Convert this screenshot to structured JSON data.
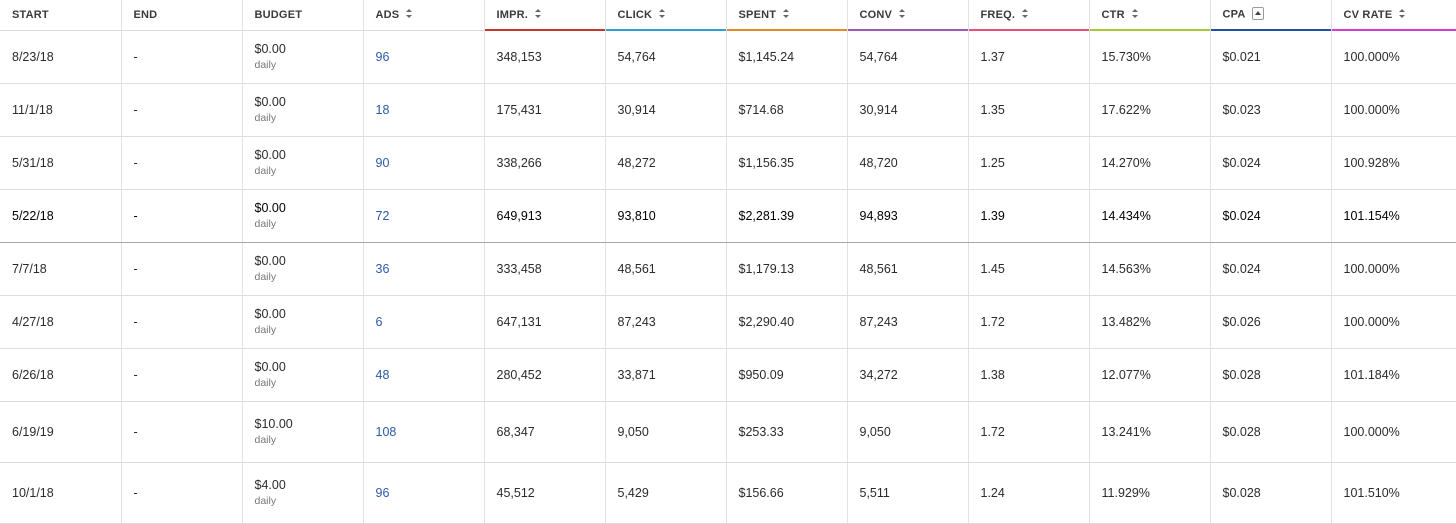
{
  "columns": [
    {
      "label": "START",
      "sort": "none",
      "accent": ""
    },
    {
      "label": "END",
      "sort": "none",
      "accent": ""
    },
    {
      "label": "BUDGET",
      "sort": "none",
      "accent": ""
    },
    {
      "label": "ADS",
      "sort": "both",
      "accent": ""
    },
    {
      "label": "IMPR.",
      "sort": "both",
      "accent": "#c0392b"
    },
    {
      "label": "CLICK",
      "sort": "both",
      "accent": "#2d9fd1"
    },
    {
      "label": "SPENT",
      "sort": "both",
      "accent": "#e08a2c"
    },
    {
      "label": "CONV",
      "sort": "both",
      "accent": "#9b59b6"
    },
    {
      "label": "FREQ.",
      "sort": "both",
      "accent": "#e84f7a"
    },
    {
      "label": "CTR",
      "sort": "both",
      "accent": "#a6c936"
    },
    {
      "label": "CPA",
      "sort": "asc",
      "accent": "#1f4fa8"
    },
    {
      "label": "CV RATE",
      "sort": "both",
      "accent": "#d63bcf"
    }
  ],
  "rows": [
    {
      "start": "8/23/18",
      "end": "-",
      "budget": "$0.00",
      "budget_unit": "daily",
      "ads": "96",
      "impr": "348,153",
      "click": "54,764",
      "spent": "$1,145.24",
      "conv": "54,764",
      "freq": "1.37",
      "ctr": "15.730%",
      "cpa": "$0.021",
      "cv_rate": "100.000%"
    },
    {
      "start": "11/1/18",
      "end": "-",
      "budget": "$0.00",
      "budget_unit": "daily",
      "ads": "18",
      "impr": "175,431",
      "click": "30,914",
      "spent": "$714.68",
      "conv": "30,914",
      "freq": "1.35",
      "ctr": "17.622%",
      "cpa": "$0.023",
      "cv_rate": "100.000%"
    },
    {
      "start": "5/31/18",
      "end": "-",
      "budget": "$0.00",
      "budget_unit": "daily",
      "ads": "90",
      "impr": "338,266",
      "click": "48,272",
      "spent": "$1,156.35",
      "conv": "48,720",
      "freq": "1.25",
      "ctr": "14.270%",
      "cpa": "$0.024",
      "cv_rate": "100.928%"
    },
    {
      "start": "5/22/18",
      "end": "-",
      "budget": "$0.00",
      "budget_unit": "daily",
      "ads": "72",
      "impr": "649,913",
      "click": "93,810",
      "spent": "$2,281.39",
      "conv": "94,893",
      "freq": "1.39",
      "ctr": "14.434%",
      "cpa": "$0.024",
      "cv_rate": "101.154%"
    },
    {
      "start": "7/7/18",
      "end": "-",
      "budget": "$0.00",
      "budget_unit": "daily",
      "ads": "36",
      "impr": "333,458",
      "click": "48,561",
      "spent": "$1,179.13",
      "conv": "48,561",
      "freq": "1.45",
      "ctr": "14.563%",
      "cpa": "$0.024",
      "cv_rate": "100.000%"
    },
    {
      "start": "4/27/18",
      "end": "-",
      "budget": "$0.00",
      "budget_unit": "daily",
      "ads": "6",
      "impr": "647,131",
      "click": "87,243",
      "spent": "$2,290.40",
      "conv": "87,243",
      "freq": "1.72",
      "ctr": "13.482%",
      "cpa": "$0.026",
      "cv_rate": "100.000%"
    },
    {
      "start": "6/26/18",
      "end": "-",
      "budget": "$0.00",
      "budget_unit": "daily",
      "ads": "48",
      "impr": "280,452",
      "click": "33,871",
      "spent": "$950.09",
      "conv": "34,272",
      "freq": "1.38",
      "ctr": "12.077%",
      "cpa": "$0.028",
      "cv_rate": "101.184%"
    },
    {
      "start": "6/19/19",
      "end": "-",
      "budget": "$10.00",
      "budget_unit": "daily",
      "ads": "108",
      "impr": "68,347",
      "click": "9,050",
      "spent": "$253.33",
      "conv": "9,050",
      "freq": "1.72",
      "ctr": "13.241%",
      "cpa": "$0.028",
      "cv_rate": "100.000%"
    },
    {
      "start": "10/1/18",
      "end": "-",
      "budget": "$4.00",
      "budget_unit": "daily",
      "ads": "96",
      "impr": "45,512",
      "click": "5,429",
      "spent": "$156.66",
      "conv": "5,511",
      "freq": "1.24",
      "ctr": "11.929%",
      "cpa": "$0.028",
      "cv_rate": "101.510%"
    }
  ],
  "active_row": 3
}
